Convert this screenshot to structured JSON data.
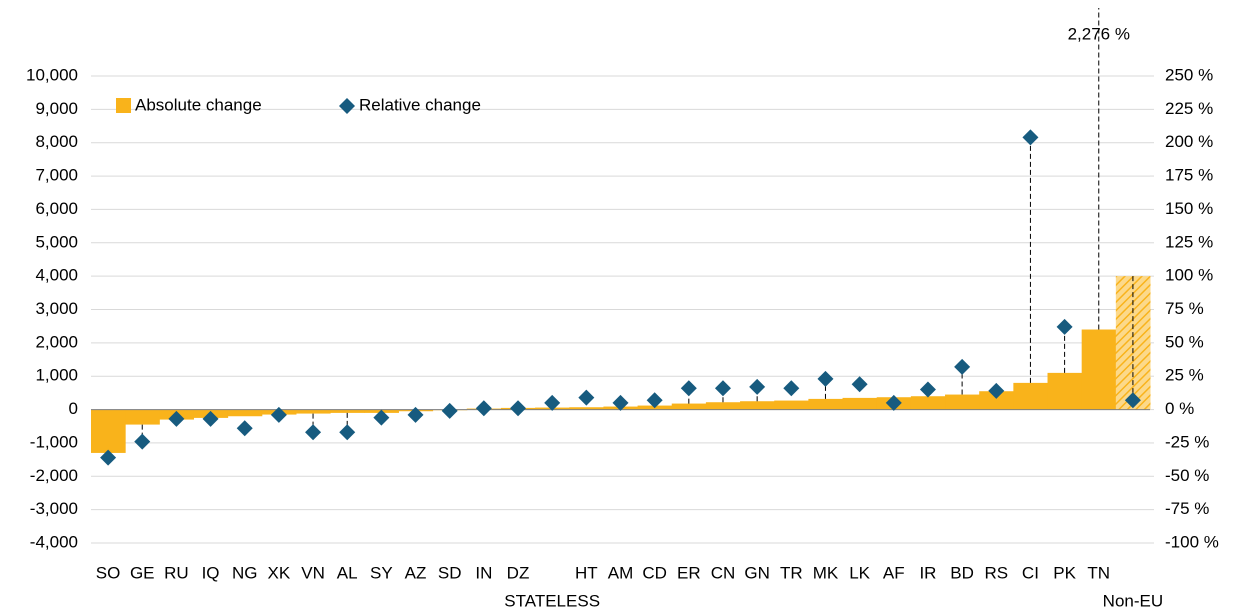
{
  "chart_data": {
    "type": "bar",
    "categories": [
      "SO",
      "GE",
      "RU",
      "IQ",
      "NG",
      "XK",
      "VN",
      "AL",
      "SY",
      "AZ",
      "SD",
      "IN",
      "DZ",
      "STATELESS",
      "HT",
      "AM",
      "CD",
      "ER",
      "CN",
      "GN",
      "TR",
      "MK",
      "LK",
      "AF",
      "IR",
      "BD",
      "RS",
      "CI",
      "PK",
      "TN",
      "Non-EU"
    ],
    "series": [
      {
        "name": "Absolute change",
        "color": "#F9B31B",
        "values": [
          -1300,
          -450,
          -300,
          -250,
          -200,
          -150,
          -120,
          -100,
          -100,
          -50,
          -20,
          30,
          50,
          60,
          70,
          90,
          120,
          180,
          220,
          250,
          270,
          320,
          350,
          370,
          400,
          450,
          550,
          800,
          1100,
          2400,
          4000
        ],
        "hatched": [
          "Non-EU"
        ]
      },
      {
        "name": "Relative change",
        "color": "#175B7F",
        "axis": "y2",
        "values": [
          -36,
          -24,
          -7,
          -7,
          -14,
          -4,
          -17,
          -17,
          -6,
          -4,
          -1,
          1,
          1,
          5,
          9,
          5,
          7,
          16,
          16,
          17,
          16,
          23,
          19,
          5,
          15,
          32,
          14,
          204,
          62,
          2276,
          7
        ],
        "value_labels": [
          null,
          null,
          null,
          null,
          null,
          null,
          null,
          null,
          null,
          null,
          null,
          null,
          null,
          null,
          null,
          null,
          null,
          null,
          null,
          null,
          null,
          null,
          null,
          null,
          null,
          null,
          null,
          null,
          null,
          "2,276 %",
          null
        ]
      }
    ],
    "ylim": [
      -4000,
      10000
    ],
    "yticks": [
      {
        "value": -4000,
        "label": "-4,000"
      },
      {
        "value": -3000,
        "label": "-3,000"
      },
      {
        "value": -2000,
        "label": "-2,000"
      },
      {
        "value": -1000,
        "label": "-1,000"
      },
      0,
      {
        "value": 1000,
        "label": "1,000"
      },
      {
        "value": 2000,
        "label": "2,000"
      },
      {
        "value": 3000,
        "label": "3,000"
      },
      {
        "value": 4000,
        "label": "4,000"
      },
      {
        "value": 5000,
        "label": "5,000"
      },
      {
        "value": 6000,
        "label": "6,000"
      },
      {
        "value": 7000,
        "label": "7,000"
      },
      {
        "value": 8000,
        "label": "8,000"
      },
      {
        "value": 9000,
        "label": "9,000"
      },
      {
        "value": 10000,
        "label": "10,000"
      }
    ],
    "y2lim": [
      -100,
      250
    ],
    "y2ticks": [
      {
        "value": -100,
        "label": "-100 %"
      },
      {
        "value": -75,
        "label": "-75 %"
      },
      {
        "value": -50,
        "label": "-50 %"
      },
      {
        "value": -25,
        "label": "-25 %"
      },
      {
        "value": 0,
        "label": "0 %"
      },
      {
        "value": 25,
        "label": "25 %"
      },
      {
        "value": 50,
        "label": "50 %"
      },
      {
        "value": 75,
        "label": "75 %"
      },
      {
        "value": 100,
        "label": "100 %"
      },
      {
        "value": 125,
        "label": "125 %"
      },
      {
        "value": 150,
        "label": "150 %"
      },
      {
        "value": 175,
        "label": "175 %"
      },
      {
        "value": 200,
        "label": "200 %"
      },
      {
        "value": 225,
        "label": "225 %"
      },
      {
        "value": 250,
        "label": "250 %"
      }
    ],
    "grid": true,
    "legend": "top-left"
  }
}
